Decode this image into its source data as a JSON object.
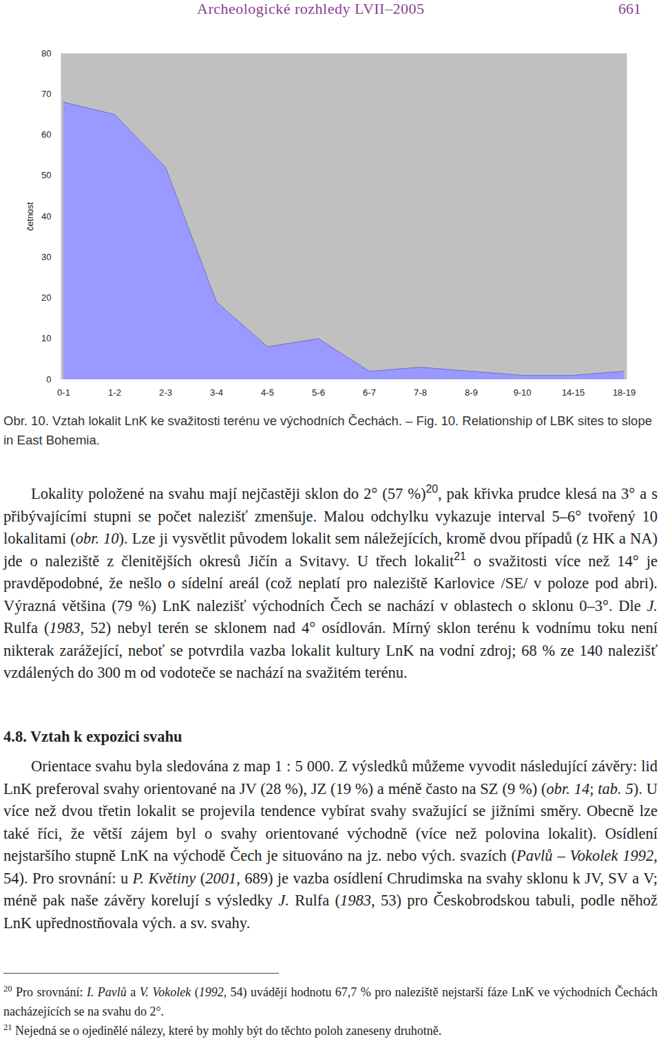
{
  "header": {
    "title": "Archeologické rozhledy LVII–2005",
    "page": "661"
  },
  "chart_data": {
    "type": "area",
    "categories": [
      "0-1",
      "1-2",
      "2-3",
      "3-4",
      "4-5",
      "5-6",
      "6-7",
      "7-8",
      "8-9",
      "9-10",
      "14-15",
      "18-19"
    ],
    "values": [
      68,
      65,
      52,
      19,
      8,
      10,
      2,
      3,
      2,
      1,
      1,
      2
    ],
    "y_label": "četnost",
    "color": "#9999ff",
    "ylim": [
      0,
      80
    ],
    "yticks": [
      0,
      10,
      20,
      30,
      40,
      50,
      60,
      70,
      80
    ]
  },
  "caption": "Obr. 10. Vztah lokalit LnK ke svažitosti terénu ve východních Čechách. – Fig. 10. Relationship of LBK sites to slope in East Bohemia.",
  "paragraphs": [
    [
      "Lokality položené na svahu mají nejčastěji sklon do 2° (57 %)",
      {
        "sup": "20"
      },
      ", pak křivka prudce klesá na 3° a s přibývajícími stupni se počet nalezišť zmenšuje. Malou odchylku vykazuje interval 5–6° tvořený 10 lokalitami (",
      {
        "italic": "obr. 10"
      },
      "). Lze ji vysvětlit původem lokalit sem náležejících, kromě dvou případů (z HK a NA) jde o naleziště z členitějších okresů Jičín a Svitavy. U třech lokalit",
      {
        "sup": "21"
      },
      " o svažitosti více než 14° je pravděpodobné, že nešlo o sídelní areál (což neplatí pro naleziště Karlovice /SE/ v poloze pod abri). Výrazná většina (79 %) LnK nalezišť východních Čech se nachází v oblastech o sklonu 0–3°. Dle ",
      {
        "italic": "J."
      },
      " Rulfa (",
      {
        "italic": "1983"
      },
      ", 52) nebyl terén se sklonem nad 4° osídlován. Mírný sklon terénu k vodnímu toku není nikterak zarážející, neboť se potvrdila vazba lokalit kultury LnK na vodní zdroj; 68 % ze 140 nalezišť vzdálených do 300 m od vodoteče se nachází na svažitém terénu."
    ],
    [
      "Orientace svahu byla sledována z map 1 : 5 000. Z výsledků můžeme vyvodit následující závěry: lid LnK preferoval svahy orientované na JV (28 %), JZ (19 %) a méně často na SZ (9 %) (",
      {
        "italic": "obr. 14"
      },
      "; ",
      {
        "italic": "tab. 5"
      },
      "). U více než dvou třetin lokalit se projevila tendence vybírat svahy svažující se jižními směry. Obecně lze také říci, že větší zájem byl o svahy orientované východně (více než polovina lokalit). Osídlení nejstaršího stupně LnK na východě Čech je situováno na jz. nebo vých. svazích (",
      {
        "italic": "Pavlů – Vokolek 1992"
      },
      ", 54). Pro srovnání: u ",
      {
        "italic": "P. Květiny"
      },
      " (",
      {
        "italic": "2001"
      },
      ", 689) je vazba osídlení Chrudimska na svahy sklonu k JV, SV a V; méně pak naše závěry korelují s výsledky ",
      {
        "italic": "J."
      },
      " Rulfa (",
      {
        "italic": "1983"
      },
      ", 53) pro Českobrodskou tabuli, podle něhož LnK upřednostňovala vých. a sv. svahy."
    ]
  ],
  "heading": "4.8. Vztah k expozici svahu",
  "footnotes": [
    [
      {
        "sup": "20"
      },
      " Pro srovnání: ",
      {
        "italic": "I. Pavlů"
      },
      " a ",
      {
        "italic": "V. Vokolek"
      },
      " (",
      {
        "italic": "1992"
      },
      ", 54) uvádějí hodnotu 67,7 % pro naleziště nejstarší fáze LnK ve východních Čechách nacházejících se na svahu do 2°."
    ],
    [
      {
        "sup": "21"
      },
      " Nejedná se o ojedinělé nálezy, které by mohly být do těchto poloh zaneseny druhotně."
    ]
  ]
}
